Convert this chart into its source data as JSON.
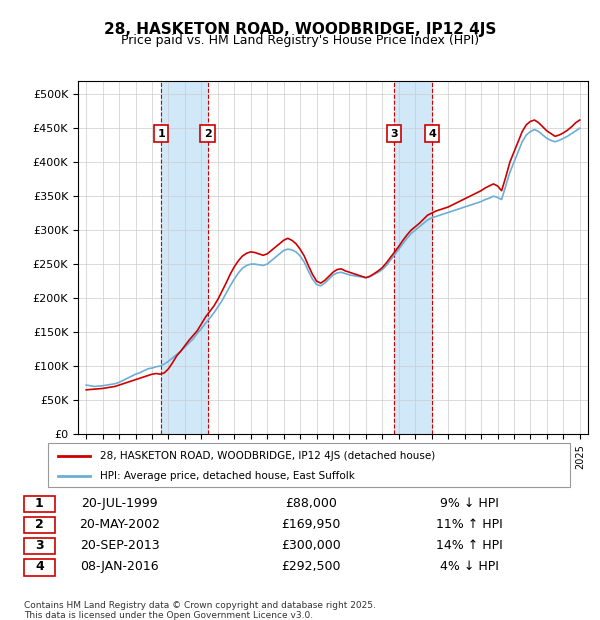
{
  "title": "28, HASKETON ROAD, WOODBRIDGE, IP12 4JS",
  "subtitle": "Price paid vs. HM Land Registry's House Price Index (HPI)",
  "ylabel": "",
  "ylim": [
    0,
    520000
  ],
  "yticks": [
    0,
    50000,
    100000,
    150000,
    200000,
    250000,
    300000,
    350000,
    400000,
    450000,
    500000
  ],
  "xlim_start": 1994.5,
  "xlim_end": 2025.5,
  "background_color": "#ffffff",
  "plot_bg_color": "#ffffff",
  "grid_color": "#cccccc",
  "hpi_color": "#6baed6",
  "price_color": "#cc0000",
  "transaction_color": "#cc0000",
  "shade_color": "#d0e8f8",
  "transactions": [
    {
      "num": 1,
      "date_str": "20-JUL-1999",
      "price": 88000,
      "pct": "9%",
      "dir": "↓",
      "year": 1999.55
    },
    {
      "num": 2,
      "date_str": "20-MAY-2002",
      "price": 169950,
      "pct": "11%",
      "dir": "↑",
      "year": 2002.38
    },
    {
      "num": 3,
      "date_str": "20-SEP-2013",
      "price": 300000,
      "pct": "14%",
      "dir": "↑",
      "year": 2013.72
    },
    {
      "num": 4,
      "date_str": "08-JAN-2016",
      "price": 292500,
      "pct": "4%",
      "dir": "↓",
      "year": 2016.03
    }
  ],
  "legend_line1": "28, HASKETON ROAD, WOODBRIDGE, IP12 4JS (detached house)",
  "legend_line2": "HPI: Average price, detached house, East Suffolk",
  "footer1": "Contains HM Land Registry data © Crown copyright and database right 2025.",
  "footer2": "This data is licensed under the Open Government Licence v3.0.",
  "hpi_data_x": [
    1995.0,
    1995.25,
    1995.5,
    1995.75,
    1996.0,
    1996.25,
    1996.5,
    1996.75,
    1997.0,
    1997.25,
    1997.5,
    1997.75,
    1998.0,
    1998.25,
    1998.5,
    1998.75,
    1999.0,
    1999.25,
    1999.5,
    1999.75,
    2000.0,
    2000.25,
    2000.5,
    2000.75,
    2001.0,
    2001.25,
    2001.5,
    2001.75,
    2002.0,
    2002.25,
    2002.5,
    2002.75,
    2003.0,
    2003.25,
    2003.5,
    2003.75,
    2004.0,
    2004.25,
    2004.5,
    2004.75,
    2005.0,
    2005.25,
    2005.5,
    2005.75,
    2006.0,
    2006.25,
    2006.5,
    2006.75,
    2007.0,
    2007.25,
    2007.5,
    2007.75,
    2008.0,
    2008.25,
    2008.5,
    2008.75,
    2009.0,
    2009.25,
    2009.5,
    2009.75,
    2010.0,
    2010.25,
    2010.5,
    2010.75,
    2011.0,
    2011.25,
    2011.5,
    2011.75,
    2012.0,
    2012.25,
    2012.5,
    2012.75,
    2013.0,
    2013.25,
    2013.5,
    2013.75,
    2014.0,
    2014.25,
    2014.5,
    2014.75,
    2015.0,
    2015.25,
    2015.5,
    2015.75,
    2016.0,
    2016.25,
    2016.5,
    2016.75,
    2017.0,
    2017.25,
    2017.5,
    2017.75,
    2018.0,
    2018.25,
    2018.5,
    2018.75,
    2019.0,
    2019.25,
    2019.5,
    2019.75,
    2020.0,
    2020.25,
    2020.5,
    2020.75,
    2021.0,
    2021.25,
    2021.5,
    2021.75,
    2022.0,
    2022.25,
    2022.5,
    2022.75,
    2023.0,
    2023.25,
    2023.5,
    2023.75,
    2024.0,
    2024.25,
    2024.5,
    2024.75,
    2025.0
  ],
  "hpi_data_y": [
    72000,
    71000,
    70000,
    70500,
    71000,
    72000,
    73000,
    74000,
    76000,
    79000,
    82000,
    85000,
    88000,
    90000,
    93000,
    96000,
    97000,
    99000,
    100000,
    103000,
    107000,
    112000,
    117000,
    122000,
    128000,
    134000,
    140000,
    148000,
    155000,
    163000,
    170000,
    178000,
    187000,
    196000,
    207000,
    218000,
    228000,
    237000,
    244000,
    248000,
    250000,
    250000,
    249000,
    248000,
    250000,
    255000,
    260000,
    265000,
    270000,
    272000,
    271000,
    268000,
    262000,
    253000,
    240000,
    228000,
    220000,
    218000,
    222000,
    228000,
    234000,
    237000,
    238000,
    236000,
    234000,
    233000,
    232000,
    231000,
    230000,
    232000,
    235000,
    238000,
    242000,
    248000,
    256000,
    264000,
    272000,
    280000,
    288000,
    295000,
    300000,
    305000,
    310000,
    315000,
    318000,
    320000,
    322000,
    324000,
    326000,
    328000,
    330000,
    332000,
    334000,
    336000,
    338000,
    340000,
    342000,
    345000,
    347000,
    350000,
    348000,
    345000,
    365000,
    385000,
    400000,
    415000,
    430000,
    440000,
    445000,
    448000,
    445000,
    440000,
    435000,
    432000,
    430000,
    432000,
    435000,
    438000,
    442000,
    446000,
    450000
  ],
  "price_data_x": [
    1995.0,
    1995.25,
    1995.5,
    1995.75,
    1996.0,
    1996.25,
    1996.5,
    1996.75,
    1997.0,
    1997.25,
    1997.5,
    1997.75,
    1998.0,
    1998.25,
    1998.5,
    1998.75,
    1999.0,
    1999.25,
    1999.5,
    1999.75,
    2000.0,
    2000.25,
    2000.5,
    2000.75,
    2001.0,
    2001.25,
    2001.5,
    2001.75,
    2002.0,
    2002.25,
    2002.5,
    2002.75,
    2003.0,
    2003.25,
    2003.5,
    2003.75,
    2004.0,
    2004.25,
    2004.5,
    2004.75,
    2005.0,
    2005.25,
    2005.5,
    2005.75,
    2006.0,
    2006.25,
    2006.5,
    2006.75,
    2007.0,
    2007.25,
    2007.5,
    2007.75,
    2008.0,
    2008.25,
    2008.5,
    2008.75,
    2009.0,
    2009.25,
    2009.5,
    2009.75,
    2010.0,
    2010.25,
    2010.5,
    2010.75,
    2011.0,
    2011.25,
    2011.5,
    2011.75,
    2012.0,
    2012.25,
    2012.5,
    2012.75,
    2013.0,
    2013.25,
    2013.5,
    2013.75,
    2014.0,
    2014.25,
    2014.5,
    2014.75,
    2015.0,
    2015.25,
    2015.5,
    2015.75,
    2016.0,
    2016.25,
    2016.5,
    2016.75,
    2017.0,
    2017.25,
    2017.5,
    2017.75,
    2018.0,
    2018.25,
    2018.5,
    2018.75,
    2019.0,
    2019.25,
    2019.5,
    2019.75,
    2020.0,
    2020.25,
    2020.5,
    2020.75,
    2021.0,
    2021.25,
    2021.5,
    2021.75,
    2022.0,
    2022.25,
    2022.5,
    2022.75,
    2023.0,
    2023.25,
    2023.5,
    2023.75,
    2024.0,
    2024.25,
    2024.5,
    2024.75,
    2025.0
  ],
  "price_data_y": [
    65000,
    65500,
    66000,
    66500,
    67000,
    68000,
    69000,
    70000,
    72000,
    74000,
    76000,
    78000,
    80000,
    82000,
    84000,
    86000,
    88000,
    89000,
    88000,
    90000,
    96000,
    105000,
    115000,
    122000,
    130000,
    138000,
    145000,
    152000,
    162000,
    172000,
    180000,
    188000,
    198000,
    210000,
    222000,
    235000,
    246000,
    255000,
    262000,
    266000,
    268000,
    267000,
    265000,
    263000,
    265000,
    270000,
    275000,
    280000,
    285000,
    288000,
    285000,
    280000,
    272000,
    262000,
    248000,
    235000,
    225000,
    222000,
    226000,
    232000,
    238000,
    242000,
    243000,
    240000,
    238000,
    236000,
    234000,
    232000,
    230000,
    232000,
    236000,
    240000,
    245000,
    252000,
    260000,
    268000,
    276000,
    285000,
    293000,
    300000,
    305000,
    310000,
    316000,
    322000,
    325000,
    328000,
    330000,
    332000,
    334000,
    337000,
    340000,
    343000,
    346000,
    349000,
    352000,
    355000,
    358000,
    362000,
    365000,
    368000,
    365000,
    358000,
    378000,
    400000,
    415000,
    430000,
    445000,
    455000,
    460000,
    462000,
    458000,
    452000,
    446000,
    442000,
    438000,
    440000,
    443000,
    447000,
    452000,
    458000,
    462000
  ]
}
